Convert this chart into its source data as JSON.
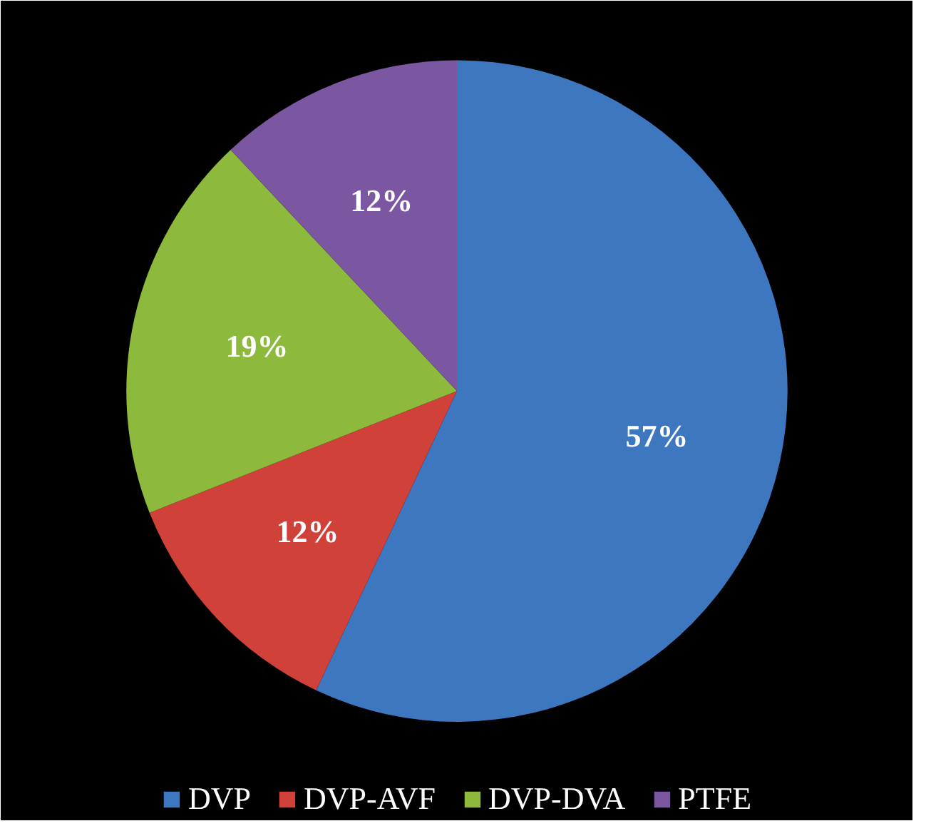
{
  "chart_data": {
    "type": "pie",
    "categories": [
      "DVP",
      "DVP-AVF",
      "DVP-DVA",
      "PTFE"
    ],
    "values": [
      57,
      12,
      19,
      12
    ],
    "colors": [
      "#3d77c0",
      "#d0413a",
      "#8dba3c",
      "#7a57a0"
    ],
    "value_labels": [
      "57%",
      "12%",
      "19%",
      "12%"
    ],
    "legend": "bottom"
  }
}
